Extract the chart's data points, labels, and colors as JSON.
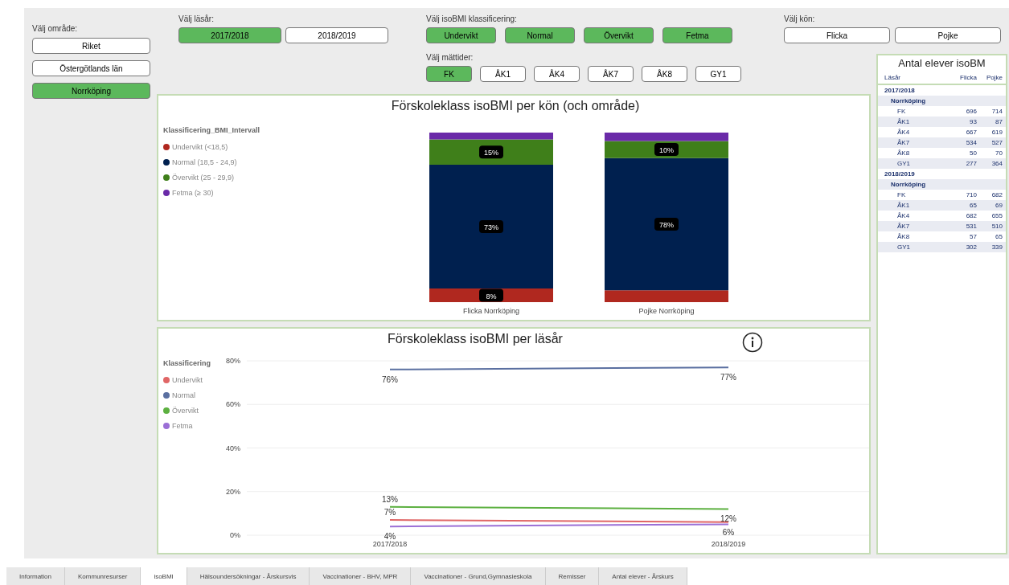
{
  "chart_data": [
    {
      "type": "other",
      "annotations": [
        "Välj område:",
        "Välj läsår:",
        "Välj isoBMI klassificering:",
        "Välj mättider:",
        "Välj kön:"
      ],
      "categories": [
        "Riket",
        "Östergötlands län",
        "Norrköping",
        "2017/2018",
        "2018/2019",
        "Undervikt",
        "Normal",
        "Övervikt",
        "Fetma",
        "FK",
        "ÅK1",
        "ÅK4",
        "ÅK7",
        "ÅK8",
        "GY1",
        "Flicka",
        "Pojke"
      ],
      "colors": [
        "#ffffff",
        "#ffffff",
        "#5cb85c",
        "#5cb85c",
        "#ffffff",
        "#5cb85c",
        "#5cb85c",
        "#5cb85c",
        "#5cb85c",
        "#5cb85c",
        "#ffffff",
        "#ffffff",
        "#ffffff",
        "#ffffff",
        "#ffffff",
        "#ffffff",
        "#ffffff"
      ]
    },
    {
      "type": "bar",
      "title": "Förskoleklass isoBMI per kön (och område)",
      "legend_title": "Klassificering_BMI_Intervall",
      "stacked": true,
      "legend": "left",
      "categories": [
        "Flicka Norrköping",
        "Pojke Norrköping"
      ],
      "series": [
        {
          "name": "Undervikt (<18,5)",
          "color": "#b0281f",
          "values": [
            8,
            7
          ],
          "value_labels": [
            "8%",
            null
          ]
        },
        {
          "name": "Normal (18,5 - 24,9)",
          "color": "#00204f",
          "values": [
            73,
            78
          ],
          "value_labels": [
            "73%",
            "78%"
          ]
        },
        {
          "name": "Övervikt (25 - 29,9)",
          "color": "#3f7f1a",
          "values": [
            15,
            10
          ],
          "value_labels": [
            "15%",
            "10%"
          ]
        },
        {
          "name": "Fetma (≥ 30)",
          "color": "#6a2aa8",
          "values": [
            4,
            5
          ],
          "value_labels": [
            null,
            null
          ]
        }
      ]
    },
    {
      "type": "line",
      "title": "Förskoleklass isoBMI per läsår",
      "legend_title": "Klassificering",
      "legend": "left",
      "grid": "y",
      "marker": "none",
      "categories": [
        "2017/2018",
        "2018/2019"
      ],
      "ylim": [
        0,
        80
      ],
      "yticks": [
        {
          "value": 0,
          "label": "0%"
        },
        {
          "value": 20,
          "label": "20%"
        },
        {
          "value": 40,
          "label": "40%"
        },
        {
          "value": 60,
          "label": "60%"
        },
        {
          "value": 80,
          "label": "80%"
        }
      ],
      "series": [
        {
          "name": "Undervikt",
          "color": "#e06666",
          "values": [
            7,
            6
          ],
          "value_labels": [
            "7%",
            "6%"
          ]
        },
        {
          "name": "Normal",
          "color": "#5a6fa0",
          "values": [
            76,
            77
          ],
          "value_labels": [
            "76%",
            "77%"
          ]
        },
        {
          "name": "Övervikt",
          "color": "#5cb040",
          "values": [
            13,
            12
          ],
          "value_labels": [
            "13%",
            "12%"
          ]
        },
        {
          "name": "Fetma",
          "color": "#9b6fd6",
          "values": [
            4,
            5
          ],
          "value_labels": [
            "4%",
            null
          ]
        }
      ]
    },
    {
      "type": "other",
      "title": "Antal elever isoBM",
      "xlabel": "Läsår",
      "data_labels": true,
      "annotations": [
        "Flicka",
        "Pojke"
      ],
      "categories": [
        "2017/2018",
        "Norrköping",
        "FK",
        "ÅK1",
        "ÅK4",
        "ÅK7",
        "ÅK8",
        "GY1",
        "2018/2019",
        "Norrköping",
        "FK",
        "ÅK1",
        "ÅK4",
        "ÅK7",
        "ÅK8",
        "GY1"
      ],
      "series": [
        {
          "values": [
            null,
            null,
            696,
            93,
            667,
            534,
            50,
            277,
            null,
            null,
            710,
            65,
            682,
            531,
            57,
            302
          ]
        },
        {
          "values": [
            null,
            null,
            714,
            87,
            619,
            527,
            70,
            364,
            null,
            null,
            682,
            69,
            655,
            510,
            65,
            339
          ]
        }
      ]
    },
    {
      "type": "other",
      "categories": [
        "Information",
        "Kommunresurser",
        "isoBMI",
        "Hälsoundersökningar - Årskursvis",
        "Vaccinationer - BHV, MPR",
        "Vaccinationer - Grund,Gymnasieskola",
        "Remisser",
        "Antal elever - Årskurs"
      ],
      "colors": [
        "#e8e8e8",
        "#e8e8e8",
        "#ffffff",
        "#e8e8e8",
        "#e8e8e8",
        "#e8e8e8",
        "#e8e8e8",
        "#e8e8e8"
      ]
    }
  ]
}
